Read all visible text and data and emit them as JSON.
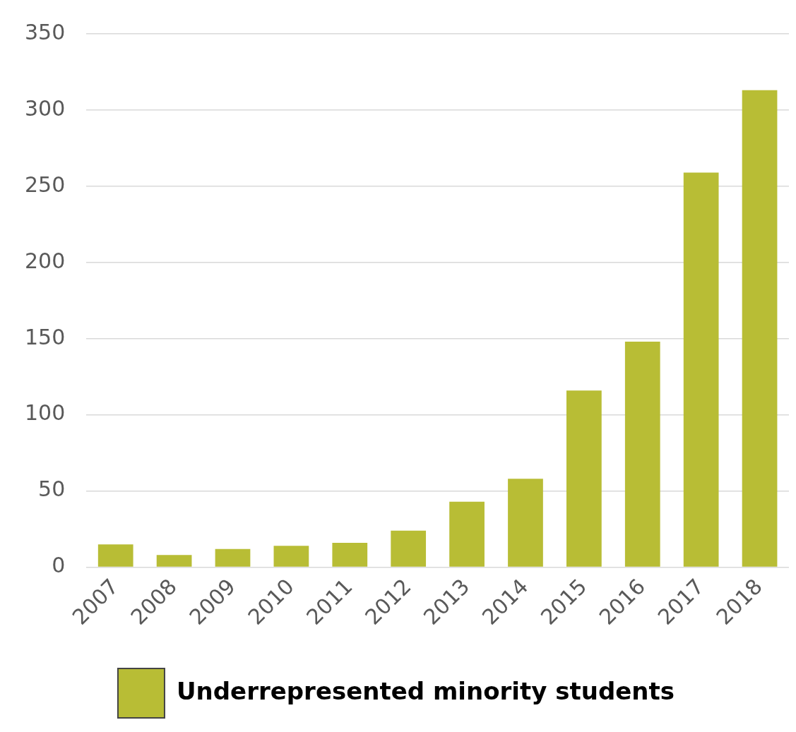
{
  "chart_data": {
    "type": "bar",
    "categories": [
      "2007",
      "2008",
      "2009",
      "2010",
      "2011",
      "2012",
      "2013",
      "2014",
      "2015",
      "2016",
      "2017",
      "2018"
    ],
    "series": [
      {
        "name": "Underrepresented minority students",
        "color": "#b8bd35",
        "values": [
          15,
          8,
          12,
          14,
          16,
          24,
          43,
          58,
          116,
          148,
          259,
          313
        ]
      }
    ],
    "ylim": [
      0,
      350
    ],
    "yticks": [
      0,
      50,
      100,
      150,
      200,
      250,
      300,
      350
    ],
    "grid": "y",
    "legend": "bottom"
  }
}
